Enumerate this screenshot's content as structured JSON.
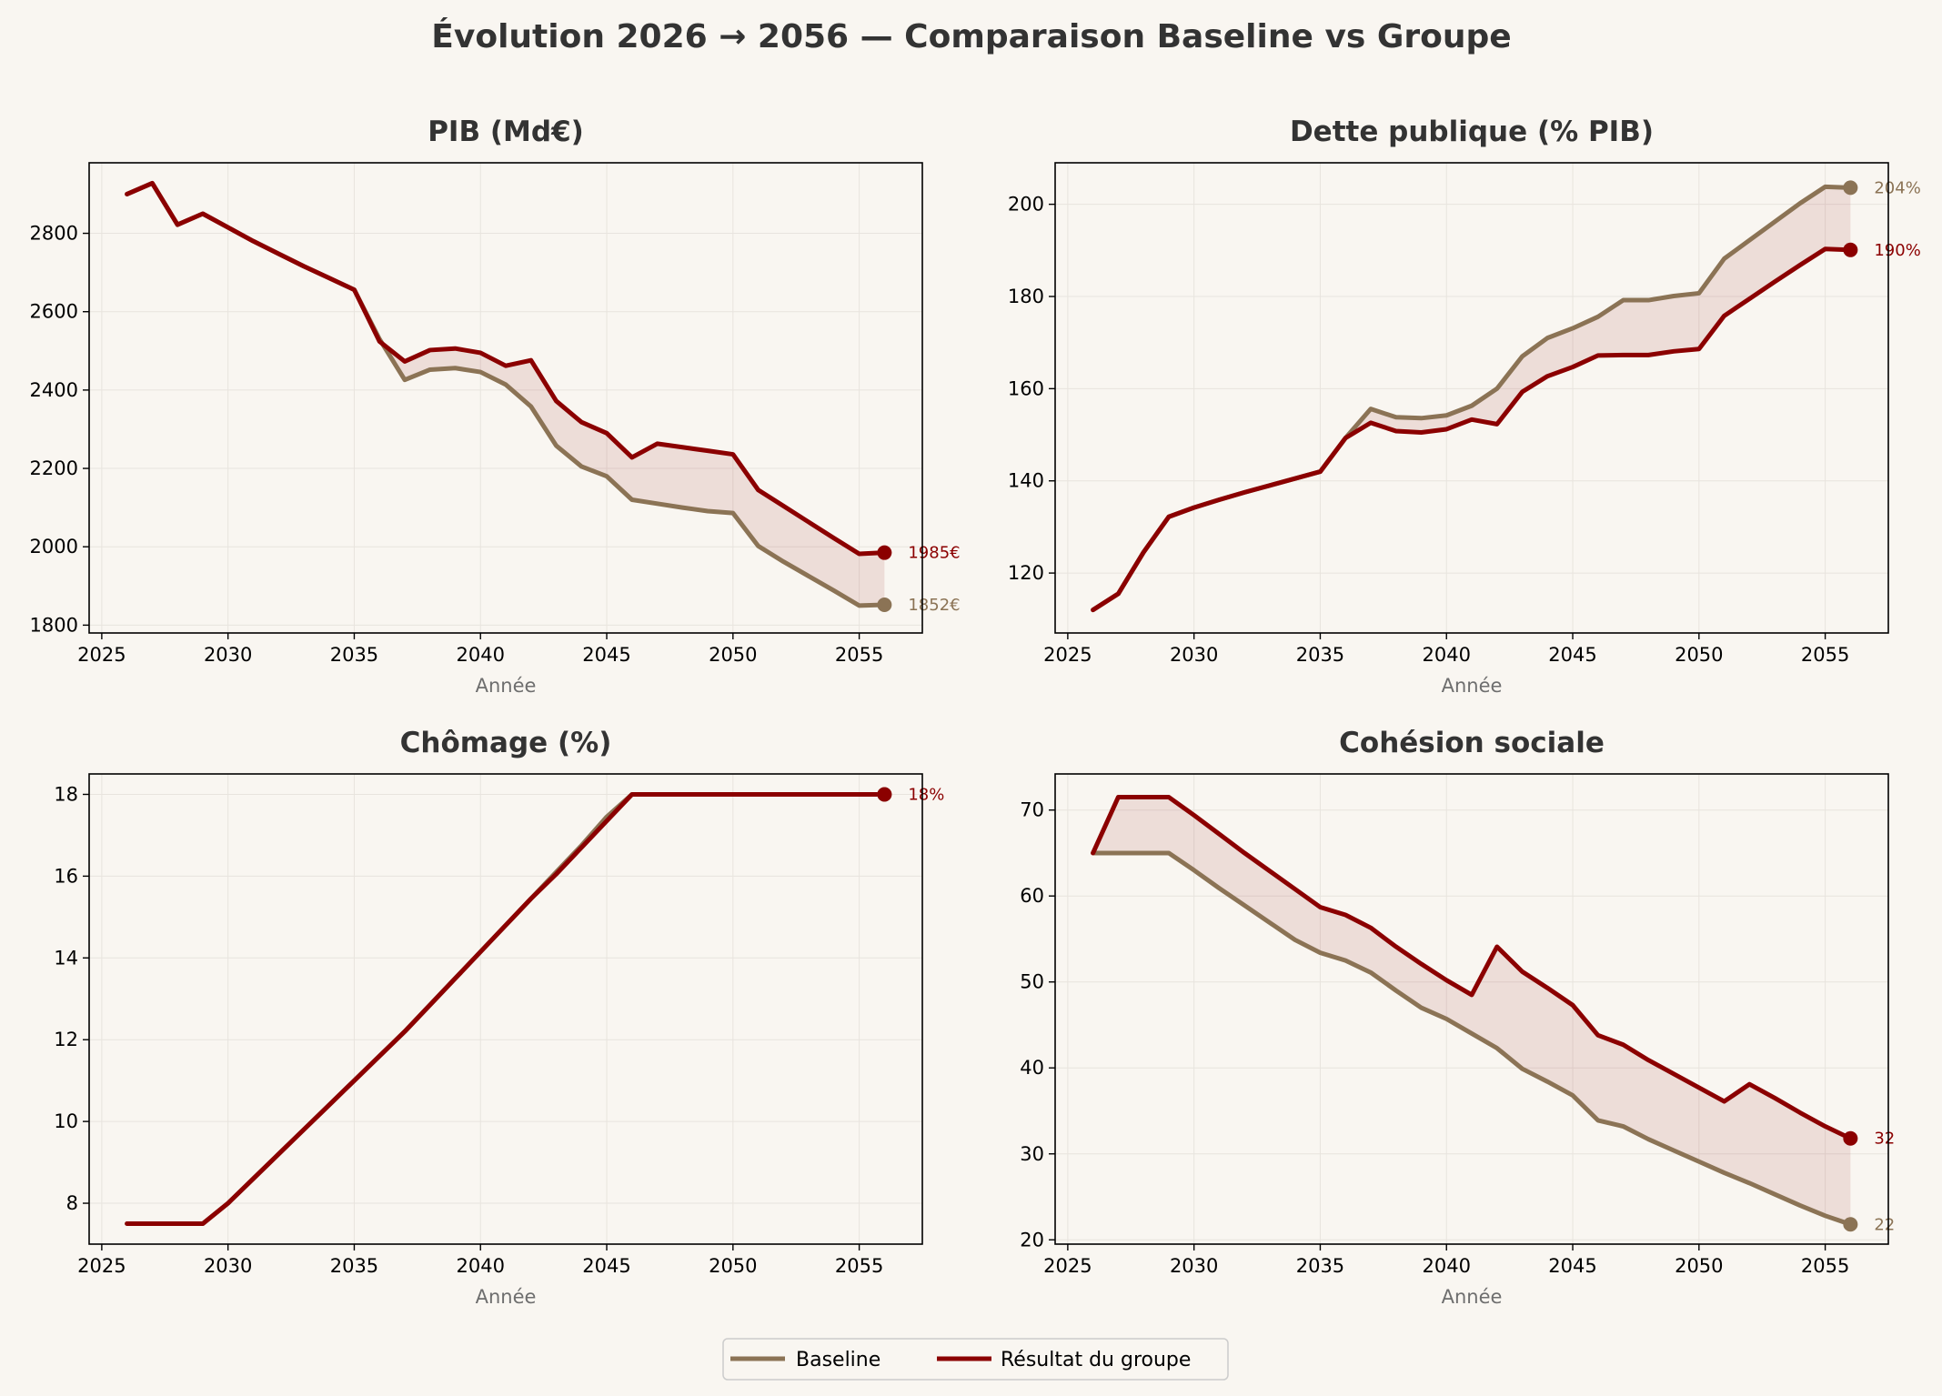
{
  "title": "Évolution 2026 → 2056 — Comparaison Baseline vs Groupe",
  "colors": {
    "background": "#f9f6f1",
    "baseline": "#8b7355",
    "group": "#8b0000",
    "fill": "#8b0000",
    "grid": "#e8e4de"
  },
  "legend": {
    "baseline_label": "Baseline",
    "group_label": "Résultat du groupe"
  },
  "chart_data": [
    {
      "type": "line",
      "title": "PIB (Md€)",
      "xlabel": "Année",
      "ylabel": "",
      "xlim": [
        2024.5,
        2057.5
      ],
      "ylim": [
        1780,
        2980
      ],
      "xticks": [
        2025,
        2030,
        2035,
        2040,
        2045,
        2050,
        2055
      ],
      "yticks": [
        1800,
        2000,
        2200,
        2400,
        2600,
        2800
      ],
      "x": [
        2026,
        2027,
        2028,
        2029,
        2030,
        2031,
        2032,
        2033,
        2034,
        2035,
        2036,
        2037,
        2038,
        2039,
        2040,
        2041,
        2042,
        2043,
        2044,
        2045,
        2046,
        2047,
        2048,
        2049,
        2050,
        2051,
        2052,
        2053,
        2054,
        2055,
        2056
      ],
      "series": [
        {
          "name": "Baseline",
          "values": [
            2900,
            2928,
            2822,
            2850,
            2815,
            2780,
            2748,
            2716,
            2686,
            2656,
            2530,
            2426,
            2452,
            2456,
            2446,
            2414,
            2358,
            2258,
            2205,
            2180,
            2120,
            2110,
            2100,
            2091,
            2086,
            2002,
            1962,
            1925,
            1888,
            1850,
            1852
          ]
        },
        {
          "name": "Résultat du groupe",
          "values": [
            2900,
            2928,
            2822,
            2850,
            2815,
            2780,
            2748,
            2716,
            2686,
            2656,
            2524,
            2473,
            2502,
            2506,
            2495,
            2462,
            2476,
            2372,
            2318,
            2290,
            2228,
            2263,
            2254,
            2245,
            2236,
            2145,
            2104,
            2063,
            2022,
            1982,
            1985
          ]
        }
      ],
      "end_labels": {
        "group": "1985€",
        "baseline": "1852€"
      }
    },
    {
      "type": "line",
      "title": "Dette publique (% PIB)",
      "xlabel": "Année",
      "ylabel": "",
      "xlim": [
        2024.5,
        2057.5
      ],
      "ylim": [
        107,
        209
      ],
      "xticks": [
        2025,
        2030,
        2035,
        2040,
        2045,
        2050,
        2055
      ],
      "yticks": [
        120,
        140,
        160,
        180,
        200
      ],
      "x": [
        2026,
        2027,
        2028,
        2029,
        2030,
        2031,
        2032,
        2033,
        2034,
        2035,
        2036,
        2037,
        2038,
        2039,
        2040,
        2041,
        2042,
        2043,
        2044,
        2045,
        2046,
        2047,
        2048,
        2049,
        2050,
        2051,
        2052,
        2053,
        2054,
        2055,
        2056
      ],
      "series": [
        {
          "name": "Baseline",
          "values": [
            112,
            115.5,
            124.5,
            132.2,
            134.2,
            135.9,
            137.5,
            139,
            140.5,
            142,
            149.3,
            155.6,
            153.8,
            153.6,
            154.2,
            156.3,
            160,
            167,
            171,
            173.1,
            175.6,
            179.2,
            179.2,
            180.1,
            180.7,
            188.2,
            192.2,
            196.2,
            200.2,
            203.8,
            203.6
          ]
        },
        {
          "name": "Résultat du groupe",
          "values": [
            112,
            115.5,
            124.5,
            132.2,
            134.2,
            135.9,
            137.5,
            139,
            140.5,
            142,
            149.3,
            152.6,
            150.8,
            150.5,
            151.2,
            153.3,
            152.3,
            159.3,
            162.7,
            164.7,
            167.2,
            167.3,
            167.3,
            168.1,
            168.6,
            175.8,
            179.5,
            183.2,
            186.8,
            190.3,
            190.1
          ]
        }
      ],
      "end_labels": {
        "baseline": "204%",
        "group": "190%"
      }
    },
    {
      "type": "line",
      "title": "Chômage (%)",
      "xlabel": "Année",
      "ylabel": "",
      "xlim": [
        2024.5,
        2057.5
      ],
      "ylim": [
        7.0,
        18.5
      ],
      "xticks": [
        2025,
        2030,
        2035,
        2040,
        2045,
        2050,
        2055
      ],
      "yticks": [
        8,
        10,
        12,
        14,
        16,
        18
      ],
      "x": [
        2026,
        2027,
        2028,
        2029,
        2030,
        2031,
        2032,
        2033,
        2034,
        2035,
        2036,
        2037,
        2038,
        2039,
        2040,
        2041,
        2042,
        2043,
        2044,
        2045,
        2046,
        2047,
        2048,
        2049,
        2050,
        2051,
        2052,
        2053,
        2054,
        2055,
        2056
      ],
      "series": [
        {
          "name": "Baseline",
          "values": [
            7.5,
            7.5,
            7.5,
            7.5,
            8.0,
            8.6,
            9.2,
            9.8,
            10.4,
            11.0,
            11.6,
            12.2,
            12.85,
            13.5,
            14.15,
            14.8,
            15.45,
            16.1,
            16.75,
            17.45,
            18,
            18,
            18,
            18,
            18,
            18,
            18,
            18,
            18,
            18,
            18
          ]
        },
        {
          "name": "Résultat du groupe",
          "values": [
            7.5,
            7.5,
            7.5,
            7.5,
            8.0,
            8.6,
            9.2,
            9.8,
            10.4,
            11.0,
            11.6,
            12.2,
            12.85,
            13.5,
            14.15,
            14.8,
            15.45,
            16.05,
            16.7,
            17.35,
            18,
            18,
            18,
            18,
            18,
            18,
            18,
            18,
            18,
            18,
            18
          ]
        }
      ],
      "end_labels": {
        "group": "18%"
      }
    },
    {
      "type": "line",
      "title": "Cohésion sociale",
      "xlabel": "Année",
      "ylabel": "",
      "xlim": [
        2024.5,
        2057.5
      ],
      "ylim": [
        19.5,
        74.2
      ],
      "xticks": [
        2025,
        2030,
        2035,
        2040,
        2045,
        2050,
        2055
      ],
      "yticks": [
        20,
        30,
        40,
        50,
        60,
        70
      ],
      "x": [
        2026,
        2027,
        2028,
        2029,
        2030,
        2031,
        2032,
        2033,
        2034,
        2035,
        2036,
        2037,
        2038,
        2039,
        2040,
        2041,
        2042,
        2043,
        2044,
        2045,
        2046,
        2047,
        2048,
        2049,
        2050,
        2051,
        2052,
        2053,
        2054,
        2055,
        2056
      ],
      "series": [
        {
          "name": "Baseline",
          "values": [
            65,
            65,
            65,
            65,
            63,
            60.9,
            58.9,
            56.9,
            54.9,
            53.4,
            52.5,
            51.1,
            49,
            47,
            45.7,
            44,
            42.3,
            39.9,
            38.4,
            36.8,
            33.9,
            33.2,
            31.7,
            30.4,
            29.1,
            27.8,
            26.6,
            25.3,
            24,
            22.8,
            21.8
          ]
        },
        {
          "name": "Résultat du groupe",
          "values": [
            65,
            71.5,
            71.5,
            71.5,
            69.4,
            67.2,
            65,
            62.9,
            60.8,
            58.7,
            57.8,
            56.3,
            54.1,
            52.1,
            50.2,
            48.5,
            54.1,
            51.2,
            49.3,
            47.3,
            43.8,
            42.7,
            40.9,
            39.3,
            37.7,
            36.1,
            38.1,
            36.5,
            34.8,
            33.2,
            31.8
          ]
        }
      ],
      "end_labels": {
        "group": "32",
        "baseline": "22"
      }
    }
  ]
}
